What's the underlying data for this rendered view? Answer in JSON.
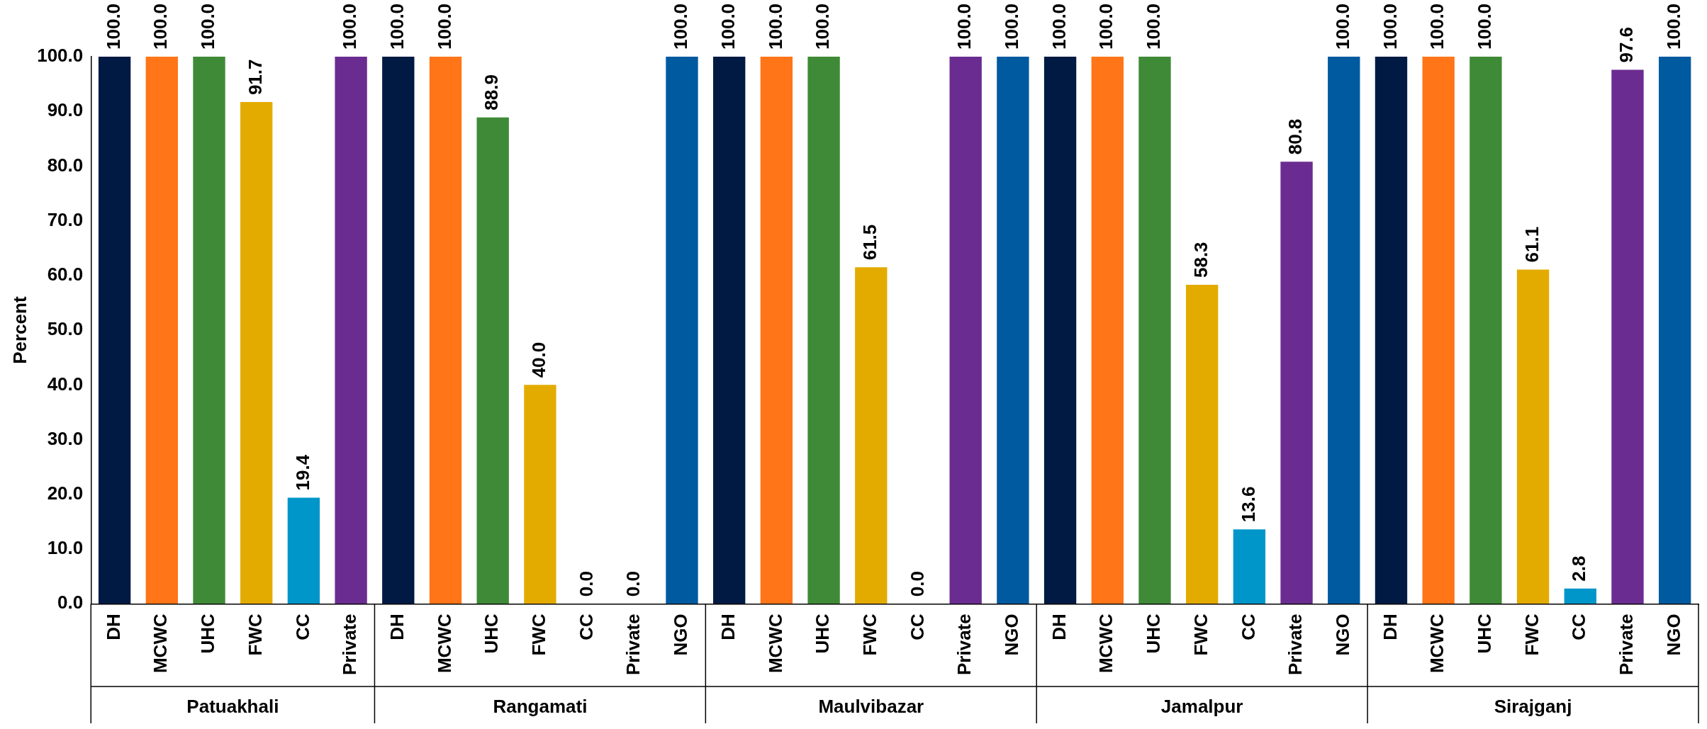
{
  "chart_data": {
    "type": "bar",
    "ylabel": "Percent",
    "categories": [
      "DH",
      "MCWC",
      "UHC",
      "FWC",
      "CC",
      "Private",
      "DH",
      "MCWC",
      "UHC",
      "FWC",
      "CC",
      "Private",
      "NGO",
      "DH",
      "MCWC",
      "UHC",
      "FWC",
      "CC",
      "Private",
      "NGO",
      "DH",
      "MCWC",
      "UHC",
      "FWC",
      "CC",
      "Private",
      "NGO",
      "DH",
      "MCWC",
      "UHC",
      "FWC",
      "CC",
      "Private",
      "NGO"
    ],
    "values": [
      100.0,
      100.0,
      100.0,
      91.7,
      19.4,
      100.0,
      100.0,
      100.0,
      88.9,
      40.0,
      0.0,
      0.0,
      100.0,
      100.0,
      100.0,
      100.0,
      61.5,
      0.0,
      100.0,
      100.0,
      100.0,
      100.0,
      100.0,
      58.3,
      13.6,
      80.8,
      100.0,
      100.0,
      100.0,
      100.0,
      61.1,
      2.8,
      97.6,
      100.0
    ],
    "colors": [
      "#001a43",
      "#ff7518",
      "#3f8a36",
      "#e3ab00",
      "#0096c9",
      "#6b2c91",
      "#001a43",
      "#ff7518",
      "#3f8a36",
      "#e3ab00",
      "#0096c9",
      "#6b2c91",
      "#005aa0",
      "#001a43",
      "#ff7518",
      "#3f8a36",
      "#e3ab00",
      "#0096c9",
      "#6b2c91",
      "#005aa0",
      "#001a43",
      "#ff7518",
      "#3f8a36",
      "#e3ab00",
      "#0096c9",
      "#6b2c91",
      "#005aa0",
      "#001a43",
      "#ff7518",
      "#3f8a36",
      "#e3ab00",
      "#0096c9",
      "#6b2c91",
      "#005aa0"
    ],
    "annotations": [
      "Patuakhali",
      "Rangamati",
      "Maulvibazar",
      "Jamalpur",
      "Sirajganj"
    ],
    "ylim": [
      0,
      100
    ],
    "yticks": [
      {
        "value": 0,
        "label": "0.0"
      },
      {
        "value": 10,
        "label": "10.0"
      },
      {
        "value": 20,
        "label": "20.0"
      },
      {
        "value": 30,
        "label": "30.0"
      },
      {
        "value": 40,
        "label": "40.0"
      },
      {
        "value": 50,
        "label": "50.0"
      },
      {
        "value": 60,
        "label": "60.0"
      },
      {
        "value": 70,
        "label": "70.0"
      },
      {
        "value": 80,
        "label": "80.0"
      },
      {
        "value": 90,
        "label": "90.0"
      },
      {
        "value": 100,
        "label": "100.0"
      }
    ],
    "value_labels": [
      "100.0",
      "100.0",
      "100.0",
      "91.7",
      "19.4",
      "100.0",
      "100.0",
      "100.0",
      "88.9",
      "40.0",
      "0.0",
      "0.0",
      "100.0",
      "100.0",
      "100.0",
      "100.0",
      "61.5",
      "0.0",
      "100.0",
      "100.0",
      "100.0",
      "100.0",
      "100.0",
      "58.3",
      "13.6",
      "80.8",
      "100.0",
      "100.0",
      "100.0",
      "100.0",
      "61.1",
      "2.8",
      "97.6",
      "100.0"
    ],
    "grid": false,
    "legend": false
  }
}
